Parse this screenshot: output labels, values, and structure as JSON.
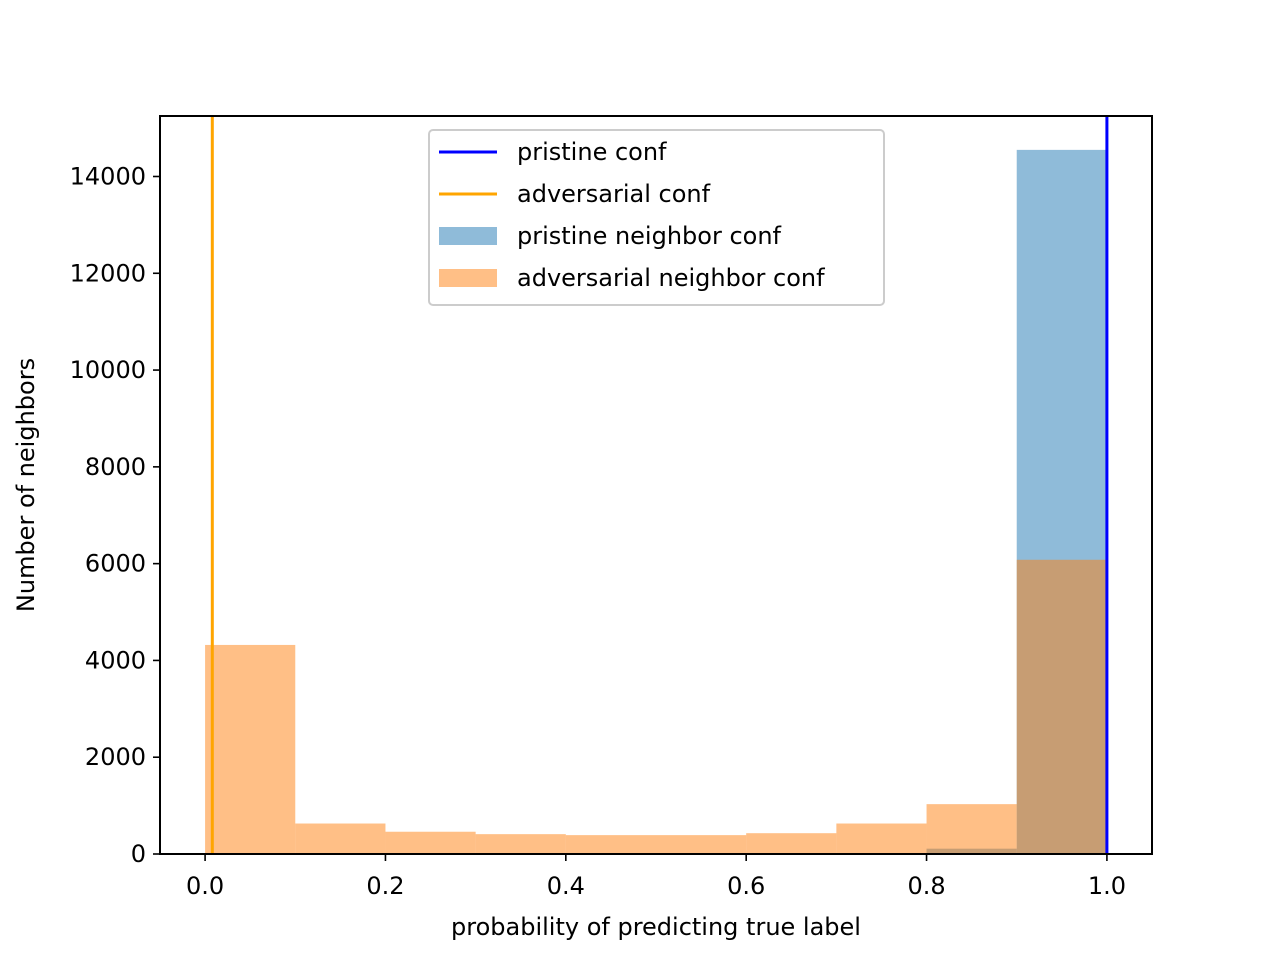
{
  "chart_data": {
    "type": "bar",
    "title": "",
    "xlabel": "probability of predicting true label",
    "ylabel": "Number of neighbors",
    "xlim": [
      -0.05,
      1.05
    ],
    "ylim": [
      0,
      15250
    ],
    "xticks": [
      0.0,
      0.2,
      0.4,
      0.6,
      0.8,
      1.0
    ],
    "xtick_labels": [
      "0.0",
      "0.2",
      "0.4",
      "0.6",
      "0.8",
      "1.0"
    ],
    "yticks": [
      0,
      2000,
      4000,
      6000,
      8000,
      10000,
      12000,
      14000
    ],
    "ytick_labels": [
      "0",
      "2000",
      "4000",
      "6000",
      "8000",
      "10000",
      "12000",
      "14000"
    ],
    "grid": false,
    "legend_position": "upper center",
    "bin_edges": [
      0.0,
      0.1,
      0.2,
      0.3,
      0.4,
      0.5,
      0.6,
      0.7,
      0.8,
      0.9,
      1.0
    ],
    "series": [
      {
        "name": "pristine neighbor conf",
        "kind": "histogram",
        "color": "#1f77b4",
        "alpha": 0.5,
        "values": [
          0,
          0,
          0,
          0,
          0,
          0,
          0,
          0,
          110,
          14550
        ]
      },
      {
        "name": "adversarial neighbor conf",
        "kind": "histogram",
        "color": "#ff7f0e",
        "alpha": 0.5,
        "values": [
          4320,
          630,
          460,
          410,
          390,
          390,
          430,
          630,
          1030,
          6080
        ]
      }
    ],
    "vlines": [
      {
        "name": "pristine conf",
        "x": 1.0,
        "color": "#0000ff"
      },
      {
        "name": "adversarial conf",
        "x": 0.008,
        "color": "#ffa500"
      }
    ],
    "legend": [
      {
        "label": "pristine conf",
        "kind": "line",
        "color": "#0000ff"
      },
      {
        "label": "adversarial conf",
        "kind": "line",
        "color": "#ffa500"
      },
      {
        "label": "pristine neighbor conf",
        "kind": "patch",
        "color": "#1f77b4",
        "alpha": 0.5
      },
      {
        "label": "adversarial neighbor conf",
        "kind": "patch",
        "color": "#ff7f0e",
        "alpha": 0.5
      }
    ]
  }
}
